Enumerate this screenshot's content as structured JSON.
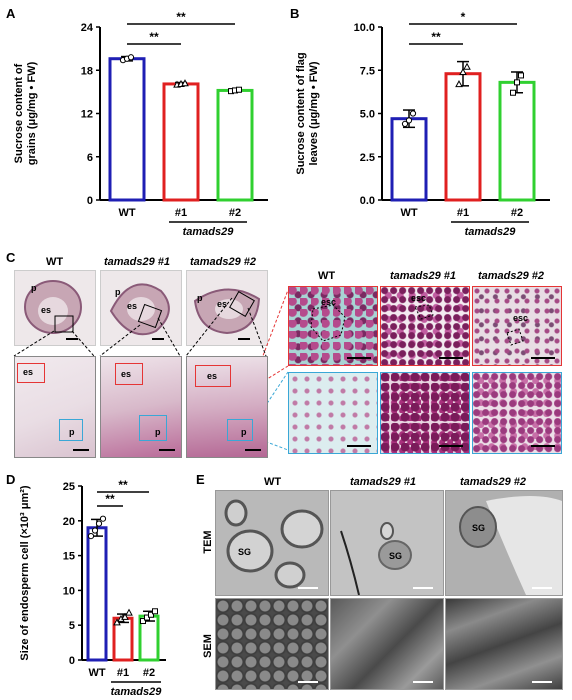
{
  "panels": {
    "A": "A",
    "B": "B",
    "C": "C",
    "D": "D",
    "E": "E"
  },
  "chart_data": [
    {
      "type": "bar",
      "panel": "A",
      "categories": [
        "WT",
        "#1",
        "#2"
      ],
      "values": [
        19.6,
        16.1,
        15.2
      ],
      "errors": [
        0.3,
        0.2,
        0.2
      ],
      "points": [
        [
          19.4,
          19.6,
          19.8
        ],
        [
          16.0,
          16.1,
          16.2
        ],
        [
          15.1,
          15.2,
          15.3
        ]
      ],
      "colors": [
        "#1f1fb4",
        "#e02020",
        "#30d030"
      ],
      "ylabel_line1": "Sucrose content of",
      "ylabel_line2": "grains (μg/mg • FW)",
      "yticks": [
        "0",
        "6",
        "12",
        "18",
        "24"
      ],
      "ylim": [
        0,
        24
      ],
      "group_label": "tamads29",
      "sig": [
        "**",
        "**"
      ]
    },
    {
      "type": "bar",
      "panel": "B",
      "categories": [
        "WT",
        "#1",
        "#2"
      ],
      "values": [
        4.7,
        7.3,
        6.8
      ],
      "errors": [
        0.5,
        0.7,
        0.6
      ],
      "points": [
        [
          4.4,
          4.6,
          5.0
        ],
        [
          6.7,
          7.4,
          7.7
        ],
        [
          6.2,
          6.8,
          7.2
        ]
      ],
      "colors": [
        "#1f1fb4",
        "#e02020",
        "#30d030"
      ],
      "ylabel_line1": "Sucrose content of flag",
      "ylabel_line2": "leaves (μg/mg • FW)",
      "yticks": [
        "0.0",
        "2.5",
        "5.0",
        "7.5",
        "10.0"
      ],
      "ylim": [
        0,
        10
      ],
      "group_label": "tamads29",
      "sig": [
        "**",
        "*"
      ]
    },
    {
      "type": "bar",
      "panel": "D",
      "categories": [
        "WT",
        "#1",
        "#2"
      ],
      "values": [
        19.0,
        6.0,
        6.3
      ],
      "errors": [
        1.2,
        0.6,
        0.7
      ],
      "points": [
        [
          17.8,
          18.6,
          19.6,
          20.3
        ],
        [
          5.4,
          5.9,
          6.2,
          6.8
        ],
        [
          5.6,
          6.1,
          6.5,
          7.0
        ]
      ],
      "colors": [
        "#1f1fb4",
        "#e02020",
        "#30d030"
      ],
      "ylabel": "Size of endosperm cell (×10³ μm²)",
      "yticks": [
        "0",
        "5",
        "10",
        "15",
        "20",
        "25"
      ],
      "ylim": [
        0,
        25
      ],
      "group_label": "tamads29",
      "sig": [
        "**",
        "**"
      ]
    }
  ],
  "panelC": {
    "headers": [
      "WT",
      "tamads29 #1",
      "tamads29 #2"
    ],
    "labels": {
      "p": "p",
      "es": "es",
      "esc": "esc"
    }
  },
  "panelE": {
    "headers": [
      "WT",
      "tamads29 #1",
      "tamads29 #2"
    ],
    "rows": [
      "TEM",
      "SEM"
    ],
    "sg": "SG"
  }
}
